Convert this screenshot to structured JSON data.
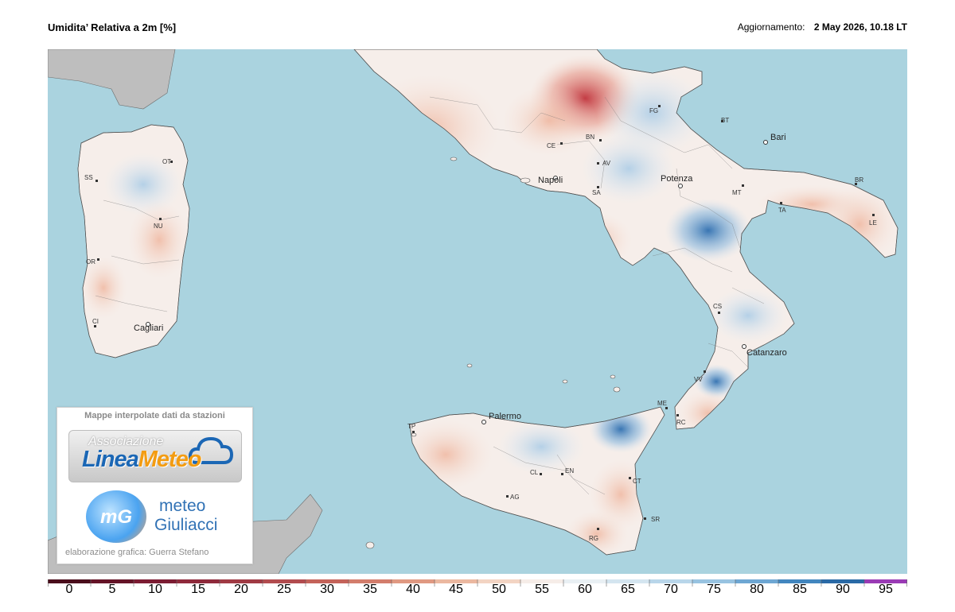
{
  "header": {
    "title": "Umidita’ Relativa a 2m [%]",
    "update_label": "Aggiornamento:",
    "update_value": "2 May 2026, 10.18 LT"
  },
  "map": {
    "sea_color": "#aad3df",
    "foreign_land_color": "#bebebe",
    "land_neutral_color": "#f6eeea",
    "cities": [
      {
        "label": "Napoli",
        "kind": "capital"
      },
      {
        "label": "Potenza",
        "kind": "capital"
      },
      {
        "label": "Bari",
        "kind": "capital"
      },
      {
        "label": "Catanzaro",
        "kind": "capital"
      },
      {
        "label": "Palermo",
        "kind": "capital"
      },
      {
        "label": "Cagliari",
        "kind": "capital"
      },
      {
        "label": "FG",
        "kind": "province"
      },
      {
        "label": "BT",
        "kind": "province"
      },
      {
        "label": "BR",
        "kind": "province"
      },
      {
        "label": "LE",
        "kind": "province"
      },
      {
        "label": "TA",
        "kind": "province"
      },
      {
        "label": "MT",
        "kind": "province"
      },
      {
        "label": "CE",
        "kind": "province"
      },
      {
        "label": "BN",
        "kind": "province"
      },
      {
        "label": "AV",
        "kind": "province"
      },
      {
        "label": "SA",
        "kind": "province"
      },
      {
        "label": "CS",
        "kind": "province"
      },
      {
        "label": "VV",
        "kind": "province"
      },
      {
        "label": "RC",
        "kind": "province"
      },
      {
        "label": "ME",
        "kind": "province"
      },
      {
        "label": "TP",
        "kind": "province"
      },
      {
        "label": "CL",
        "kind": "province"
      },
      {
        "label": "EN",
        "kind": "province"
      },
      {
        "label": "AG",
        "kind": "province"
      },
      {
        "label": "CT",
        "kind": "province"
      },
      {
        "label": "SR",
        "kind": "province"
      },
      {
        "label": "RG",
        "kind": "province"
      },
      {
        "label": "OT",
        "kind": "province"
      },
      {
        "label": "SS",
        "kind": "province"
      },
      {
        "label": "NU",
        "kind": "province"
      },
      {
        "label": "OR",
        "kind": "province"
      },
      {
        "label": "CI",
        "kind": "province"
      }
    ]
  },
  "logo_panel": {
    "heading": "Mappe interpolate dati da stazioni",
    "association_small": "Associazione",
    "linea": "Linea",
    "meteo_word": "Meteo",
    "mg_mark": "mG",
    "giuliacci_line1": "meteo",
    "giuliacci_line2": "Giuliacci",
    "credit": "elaborazione grafica: Guerra Stefano"
  },
  "legend": {
    "ticks": [
      "0",
      "5",
      "10",
      "15",
      "20",
      "25",
      "30",
      "35",
      "40",
      "45",
      "50",
      "55",
      "60",
      "65",
      "70",
      "75",
      "80",
      "85",
      "90",
      "95"
    ],
    "colors": [
      "#4a0d1c",
      "#651427",
      "#7c1c33",
      "#8f2a3b",
      "#a03a44",
      "#b24c4f",
      "#c4635a",
      "#d37d6c",
      "#e09982",
      "#ebb8a0",
      "#f3d4c3",
      "#f6ede8",
      "#e9f0f4",
      "#d4e5f0",
      "#b9d6ea",
      "#98c3e1",
      "#6ea7d3",
      "#4286bf",
      "#2a6aa6",
      "#9a3bb5"
    ]
  }
}
